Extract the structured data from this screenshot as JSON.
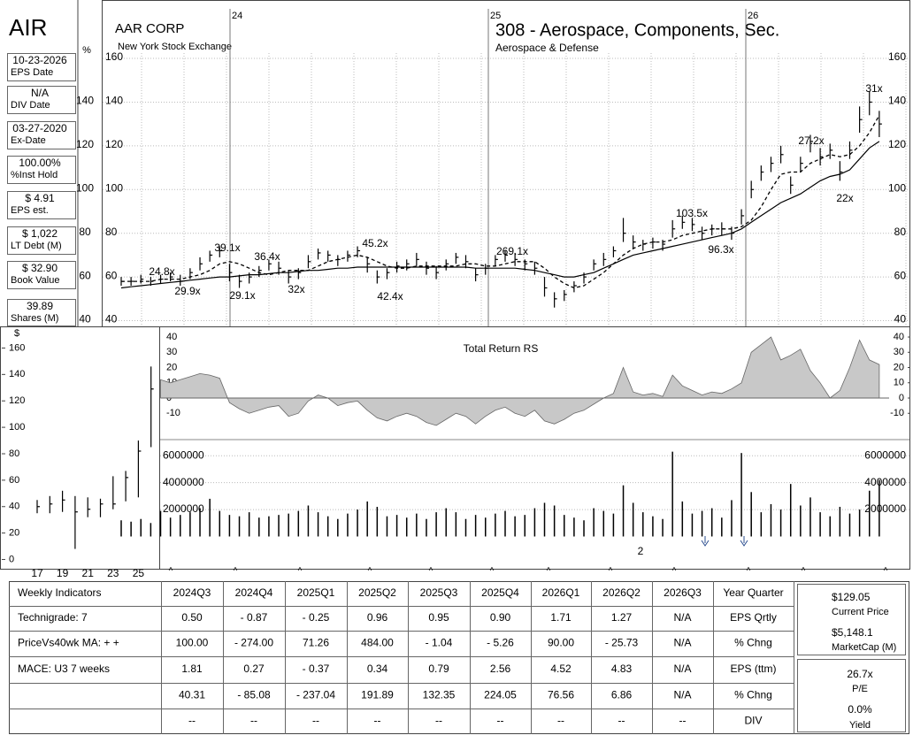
{
  "sidebar": {
    "ticker": "AIR",
    "items": [
      {
        "value": "10-23-2026",
        "label": "EPS Date"
      },
      {
        "value": "N/A",
        "label": "DIV Date"
      },
      {
        "value": "03-27-2020",
        "label": "Ex-Date"
      },
      {
        "value": "100.00%",
        "label": "%Inst Hold"
      },
      {
        "value": "$ 4.91",
        "label": "EPS est."
      },
      {
        "value": "$ 1,022",
        "label": "LT Debt (M)"
      },
      {
        "value": "$ 32.90",
        "label": "Book Value"
      },
      {
        "value": "39.89",
        "label": "Shares (M)"
      }
    ]
  },
  "pct_axis": {
    "label": "%",
    "ticks": [
      140,
      120,
      100,
      80,
      60,
      40
    ]
  },
  "header": {
    "company": "AAR CORP",
    "exchange": "New York Stock Exchange",
    "group": "308 - Aerospace, Components, Sec.",
    "sector": "Aerospace & Defense"
  },
  "chart_data": [
    {
      "type": "ohlc",
      "period_labels": [
        "24",
        "25",
        "26"
      ],
      "ylim": [
        39,
        184.7
      ],
      "yticks": [
        40,
        60,
        80,
        100,
        120,
        140,
        160
      ],
      "grid": true,
      "color": "#000000",
      "ma_colors": [
        "#000000",
        "#000000"
      ],
      "high": [
        60,
        60,
        61,
        60,
        61,
        62,
        61,
        64,
        69,
        72,
        74,
        66,
        61,
        62,
        65,
        68,
        67,
        63,
        64,
        70,
        73,
        72,
        70,
        72,
        74,
        69,
        63,
        64,
        67,
        68,
        71,
        67,
        65,
        68,
        71,
        70,
        64,
        66,
        70,
        72,
        71,
        68,
        67,
        60,
        53,
        54,
        58,
        62,
        68,
        71,
        74,
        87,
        79,
        77,
        78,
        77,
        86,
        88,
        87,
        83,
        84,
        85,
        83,
        91,
        104,
        111,
        115,
        120,
        106,
        115,
        125,
        119,
        121,
        113,
        122,
        138,
        145,
        136
      ],
      "low": [
        56,
        56,
        57,
        56,
        57,
        58,
        56,
        59,
        63,
        67,
        69,
        58,
        55,
        57,
        60,
        63,
        61,
        57,
        59,
        64,
        68,
        67,
        65,
        67,
        69,
        62,
        57,
        59,
        62,
        63,
        65,
        61,
        59,
        63,
        66,
        64,
        58,
        61,
        65,
        67,
        65,
        63,
        61,
        51,
        46,
        49,
        53,
        57,
        63,
        65,
        69,
        76,
        73,
        72,
        73,
        72,
        78,
        82,
        81,
        77,
        79,
        79,
        77,
        84,
        96,
        104,
        108,
        112,
        98,
        108,
        117,
        111,
        114,
        104,
        114,
        126,
        134,
        124
      ],
      "close": [
        58,
        58,
        59,
        58,
        59,
        60,
        58,
        62,
        66,
        70,
        72,
        62,
        58,
        60,
        63,
        66,
        64,
        60,
        62,
        67,
        71,
        70,
        68,
        70,
        72,
        66,
        60,
        62,
        65,
        66,
        68,
        64,
        62,
        66,
        69,
        67,
        61,
        64,
        68,
        70,
        68,
        66,
        64,
        55,
        50,
        52,
        56,
        60,
        66,
        68,
        72,
        80,
        76,
        75,
        76,
        75,
        82,
        85,
        84,
        80,
        82,
        82,
        80,
        88,
        100,
        108,
        112,
        116,
        102,
        112,
        122,
        115,
        118,
        108,
        118,
        132,
        140,
        130
      ],
      "ma_short": [
        58,
        58,
        58,
        58,
        59,
        59,
        59,
        60,
        61,
        63,
        66,
        67,
        66,
        64,
        62,
        61,
        62,
        63,
        63,
        63,
        65,
        67,
        68,
        69,
        70,
        69,
        67,
        65,
        64,
        64,
        65,
        65,
        65,
        65,
        65,
        66,
        66,
        65,
        65,
        66,
        67,
        67,
        67,
        64,
        60,
        57,
        55,
        56,
        59,
        62,
        66,
        70,
        73,
        75,
        76,
        76,
        77,
        79,
        80,
        81,
        82,
        82,
        82,
        83,
        86,
        92,
        100,
        107,
        108,
        108,
        112,
        114,
        116,
        115,
        116,
        120,
        126,
        134
      ],
      "ma_long": [
        55,
        55.5,
        56,
        56.5,
        57,
        57.5,
        58,
        58.5,
        59,
        59.5,
        60,
        60,
        60.5,
        61,
        61,
        61.5,
        62,
        62,
        62.5,
        63,
        63,
        63.5,
        64,
        64,
        64.5,
        64.5,
        64.5,
        64.5,
        64.5,
        64.5,
        64.5,
        64.5,
        64.5,
        64.5,
        64.5,
        64.5,
        64,
        64,
        64,
        64,
        64,
        63.5,
        63,
        62,
        61,
        60,
        60,
        61,
        62,
        64,
        66,
        68,
        70,
        71,
        72,
        73,
        74,
        75,
        76,
        77,
        78,
        79,
        80,
        82,
        85,
        88,
        91,
        94,
        96,
        98,
        101,
        104,
        106,
        107,
        109,
        114,
        119,
        122
      ],
      "annotations": [
        "24.8x",
        "29.9x",
        "39.1x",
        "29.1x",
        "36.4x",
        "32x",
        "45.2x",
        "42.4x",
        "269.1x",
        "103.5x",
        "96.3x",
        "27.2x",
        "22x",
        "31x"
      ]
    },
    {
      "type": "area",
      "title": "Total Return RS",
      "color": "#c8c8c8",
      "ylim": [
        -17.4,
        43.5
      ],
      "yticks": [
        -10,
        0,
        10,
        20,
        30,
        40
      ],
      "values": [
        null,
        null,
        null,
        null,
        12,
        10,
        12,
        14,
        16,
        15,
        13,
        -3,
        -7,
        -10,
        -8,
        -6,
        -5,
        -12,
        -10,
        -2,
        2,
        0,
        -5,
        -3,
        -2,
        -8,
        -13,
        -15,
        -12,
        -10,
        -12,
        -16,
        -18,
        -14,
        -10,
        -12,
        -17,
        -12,
        -8,
        -6,
        -10,
        -12,
        -8,
        -15,
        -17,
        -14,
        -10,
        -8,
        -4,
        0,
        3,
        20,
        4,
        2,
        3,
        1,
        15,
        8,
        5,
        2,
        4,
        3,
        6,
        10,
        30,
        35,
        40,
        25,
        28,
        32,
        18,
        10,
        0,
        5,
        20,
        38,
        25,
        22
      ]
    },
    {
      "type": "bar",
      "color": "#000000",
      "ylim": [
        0,
        7000000
      ],
      "yticks": [
        2000000,
        4000000,
        6000000
      ],
      "values": [
        1200000,
        1100000,
        1300000,
        1000000,
        1900000,
        1400000,
        1600000,
        1800000,
        2100000,
        2800000,
        1900000,
        1600000,
        1500000,
        1800000,
        1400000,
        1500000,
        1600000,
        1700000,
        1900000,
        2300000,
        1800000,
        1500000,
        1300000,
        1700000,
        2000000,
        2600000,
        2200000,
        1500000,
        1600000,
        1400000,
        1700000,
        1300000,
        1800000,
        2100000,
        1800000,
        1300000,
        1600000,
        1400000,
        1700000,
        1900000,
        1500000,
        1600000,
        2100000,
        2500000,
        2300000,
        1600000,
        1400000,
        1200000,
        2100000,
        1900000,
        1700000,
        3800000,
        2500000,
        1800000,
        1500000,
        1300000,
        6300000,
        2600000,
        1700000,
        1900000,
        2100000,
        1400000,
        2700000,
        6200000,
        3300000,
        1800000,
        2400000,
        2000000,
        3900000,
        2300000,
        2900000,
        1800000,
        1500000,
        2200000,
        1700000,
        2000000,
        3400000,
        4200000
      ]
    },
    {
      "type": "ohlc",
      "y_label": "$",
      "color": "#000000",
      "categories": [
        "17",
        null,
        "19",
        null,
        "21",
        null,
        "23",
        null,
        "25",
        null
      ],
      "ylim": [
        -5,
        169
      ],
      "yticks": [
        0,
        20,
        40,
        60,
        80,
        100,
        120,
        140,
        160
      ],
      "high": [
        45,
        48,
        52,
        48,
        47,
        46,
        63,
        67,
        90,
        146
      ],
      "low": [
        35,
        35,
        36,
        8,
        32,
        32,
        38,
        44,
        47,
        85
      ],
      "close": [
        40,
        42,
        45,
        36,
        38,
        42,
        42,
        62,
        82,
        129
      ]
    }
  ],
  "markers": {
    "carets": [
      "^",
      "^",
      "^",
      "^",
      "^",
      "^",
      "^",
      "^",
      "^",
      "^",
      "^",
      "^"
    ],
    "split": "2"
  },
  "table": {
    "header": [
      "Weekly Indicators",
      "2024Q3",
      "2024Q4",
      "2025Q1",
      "2025Q2",
      "2025Q3",
      "2025Q4",
      "2026Q1",
      "2026Q2",
      "2026Q3",
      "Year Quarter"
    ],
    "rows": [
      [
        "Technigrade: 7",
        "0.50",
        "- 0.87",
        "- 0.25",
        "0.96",
        "0.95",
        "0.90",
        "1.71",
        "1.27",
        "N/A",
        "EPS Qrtly"
      ],
      [
        "PriceVs40wk MA:  + +",
        "100.00",
        "- 274.00",
        "71.26",
        "484.00",
        "- 1.04",
        "- 5.26",
        "90.00",
        "- 25.73",
        "N/A",
        "% Chng"
      ],
      [
        "MACE: U3  7 weeks",
        "1.81",
        "0.27",
        "- 0.37",
        "0.34",
        "0.79",
        "2.56",
        "4.52",
        "4.83",
        "N/A",
        "EPS (ttm)"
      ],
      [
        null,
        "40.31",
        "- 85.08",
        "- 237.04",
        "191.89",
        "132.35",
        "224.05",
        "76.56",
        "6.86",
        "N/A",
        "% Chng"
      ],
      [
        null,
        "--",
        "--",
        "--",
        "--",
        "--",
        "--",
        "--",
        "--",
        "--",
        "DIV"
      ]
    ]
  },
  "summary": [
    {
      "value": "$129.05",
      "label": "Current Price"
    },
    {
      "value": "$5,148.1",
      "label": "MarketCap (M)"
    },
    {
      "value": "26.7x",
      "label": "P/E"
    },
    {
      "value": "0.0%",
      "label": "Yield"
    }
  ]
}
